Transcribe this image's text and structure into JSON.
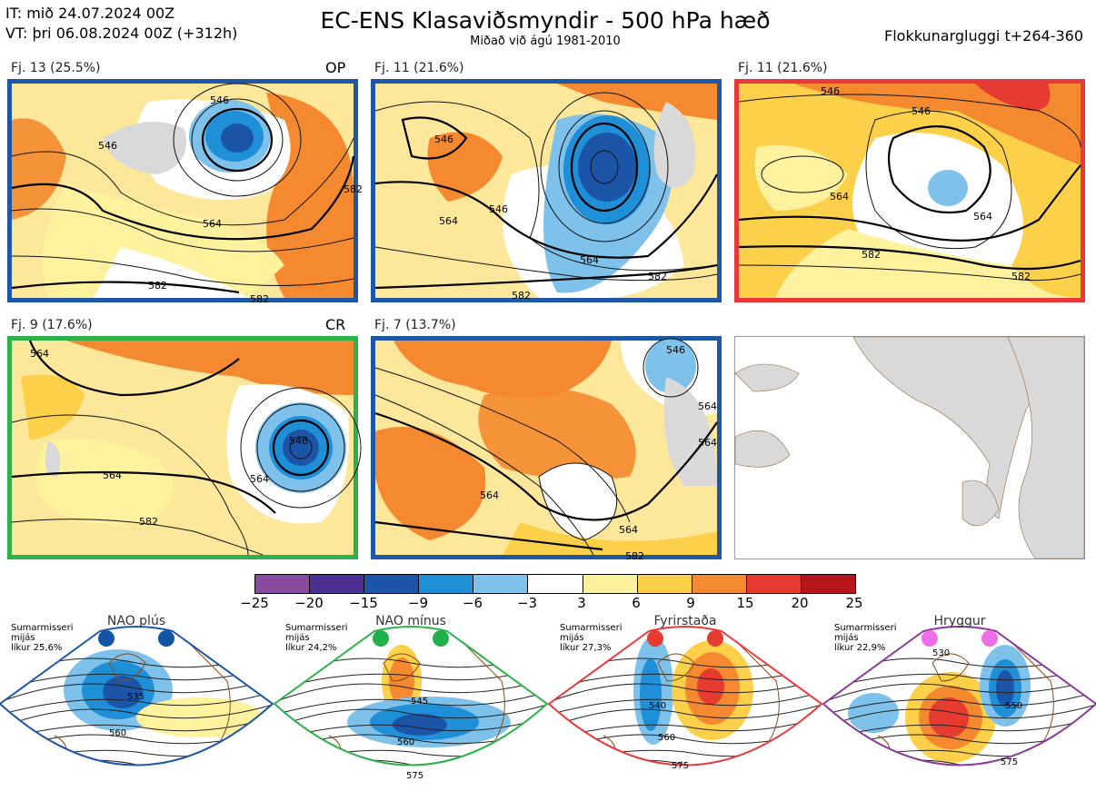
{
  "header": {
    "it_line": "IT: mið 24.07.2024 00Z",
    "vt_line": "VT: þri 06.08.2024 00Z  (+312h)",
    "title": "EC-ENS Klasaviðsmyndir - 500 hPa hæð",
    "subtitle": "Miðað við ágú 1981-2010",
    "window": "Flokkunargluggi t+264-360"
  },
  "panels": [
    {
      "label": "Fj. 13 (25.5%)",
      "tag": "OP",
      "border": "#1f57a4",
      "contours": [
        "546",
        "546",
        "564",
        "582",
        "582",
        "582"
      ]
    },
    {
      "label": "Fj. 11 (21.6%)",
      "tag": "",
      "border": "#1f57a4",
      "contours": [
        "546",
        "546",
        "564",
        "564",
        "582",
        "582"
      ]
    },
    {
      "label": "Fj. 11 (21.6%)",
      "tag": "",
      "border": "#e83a3a",
      "contours": [
        "546",
        "546",
        "564",
        "564",
        "582",
        "582"
      ]
    },
    {
      "label": "Fj. 9 (17.6%)",
      "tag": "CR",
      "border": "#2eb04a",
      "contours": [
        "564",
        "546",
        "564",
        "564",
        "582"
      ]
    },
    {
      "label": "Fj. 7 (13.7%)",
      "tag": "",
      "border": "#1f57a4",
      "contours": [
        "546",
        "564",
        "564",
        "564",
        "582",
        "564"
      ]
    }
  ],
  "colorbar": {
    "ticks": [
      "−25",
      "−20",
      "−15",
      "−9",
      "−6",
      "−3",
      "3",
      "6",
      "9",
      "15",
      "20",
      "25"
    ],
    "colors": [
      "#8a4aa0",
      "#4c2f93",
      "#1c55a8",
      "#1f8fd8",
      "#7ec1ea",
      "#ffffff",
      "#fff29e",
      "#fdd04a",
      "#f4892f",
      "#e63b30",
      "#b8141c"
    ]
  },
  "regimes": [
    {
      "title": "NAO plús",
      "note": [
        "Sumarmisseri",
        "mijás",
        "líkur 25,6%"
      ],
      "color": "#1255a5",
      "border": "#1f57a4",
      "labels": [
        "535",
        "560"
      ]
    },
    {
      "title": "NAO mínus",
      "note": [
        "Sumarmisseri",
        "mijás",
        "líkur 24,2%"
      ],
      "color": "#22b04a",
      "border": "#2eb04a",
      "labels": [
        "545",
        "560",
        "575"
      ]
    },
    {
      "title": "Fyrirstaða",
      "note": [
        "Sumarmisseri",
        "mijás",
        "líkur 27,3%"
      ],
      "color": "#e63b30",
      "border": "#e83a3a",
      "labels": [
        "540",
        "560",
        "575"
      ]
    },
    {
      "title": "Hryggur",
      "note": [
        "Sumarmisseri",
        "mijás",
        "líkur 22,9%"
      ],
      "color": "#ee6ee8",
      "border": "#8a3a9a",
      "labels": [
        "530",
        "550",
        "575"
      ]
    }
  ]
}
